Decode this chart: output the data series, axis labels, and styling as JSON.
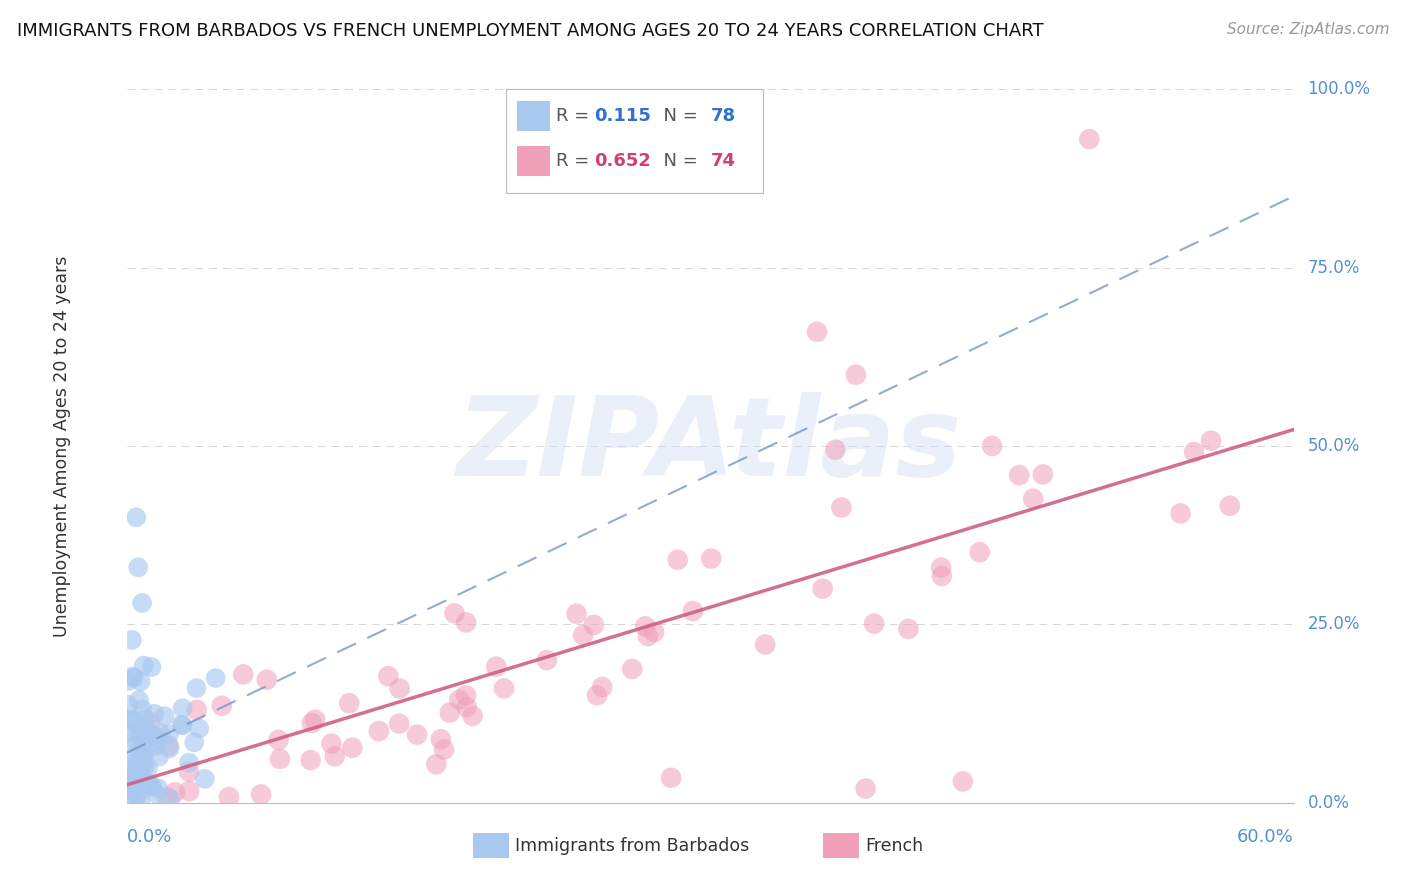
{
  "title": "IMMIGRANTS FROM BARBADOS VS FRENCH UNEMPLOYMENT AMONG AGES 20 TO 24 YEARS CORRELATION CHART",
  "source": "Source: ZipAtlas.com",
  "ylabel_label": "Unemployment Among Ages 20 to 24 years",
  "legend_blue_r_val": "0.115",
  "legend_blue_n_val": "78",
  "legend_pink_r_val": "0.652",
  "legend_pink_n_val": "74",
  "blue_color": "#a8c8f0",
  "blue_fill": "#a8c8f0",
  "pink_color": "#f0a0b8",
  "pink_fill": "#f0a0b8",
  "blue_line_color": "#7090c0",
  "pink_line_color": "#d06080",
  "blue_R": 0.115,
  "pink_R": 0.652,
  "blue_N": 78,
  "pink_N": 74,
  "xmin": 0.0,
  "xmax": 0.6,
  "ymin": 0.0,
  "ymax": 1.0,
  "watermark": "ZIPAtlas",
  "watermark_color": "#d0dff5",
  "background_color": "#ffffff",
  "grid_color": "#cccccc",
  "axis_label_color": "#5590d0",
  "text_color": "#333333",
  "source_color": "#999999",
  "blue_trend_slope": 1.3,
  "blue_trend_intercept": 0.07,
  "pink_trend_slope": 0.83,
  "pink_trend_intercept": 0.025
}
